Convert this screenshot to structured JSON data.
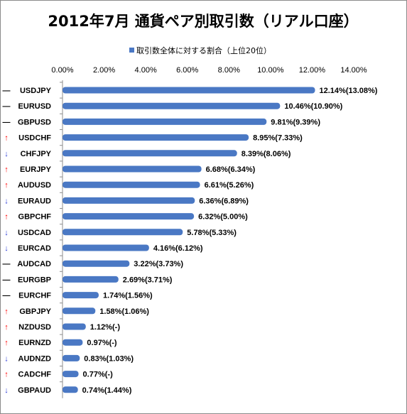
{
  "chart_data": {
    "type": "bar",
    "orientation": "horizontal",
    "title": "2012年7月 通貨ペア別取引数（リアル口座）",
    "legend": "取引数全体に対する割合（上位20位）",
    "legend_position": "top",
    "xlim": [
      0,
      14
    ],
    "x_ticks": [
      "0.00%",
      "2.00%",
      "4.00%",
      "6.00%",
      "8.00%",
      "10.00%",
      "12.00%",
      "14.00%"
    ],
    "grid": false,
    "bar_color": "#4a78c4",
    "up_color": "#ff0000",
    "down_color": "#2b3bd6",
    "categories": [
      "USDJPY",
      "EURUSD",
      "GBPUSD",
      "USDCHF",
      "CHFJPY",
      "EURJPY",
      "AUDUSD",
      "EURAUD",
      "GBPCHF",
      "USDCAD",
      "EURCAD",
      "AUDCAD",
      "EURGBP",
      "EURCHF",
      "GBPJPY",
      "NZDUSD",
      "EURNZD",
      "AUDNZD",
      "CADCHF",
      "GBPAUD"
    ],
    "trend": [
      "flat",
      "flat",
      "flat",
      "up",
      "down",
      "up",
      "up",
      "down",
      "up",
      "down",
      "down",
      "flat",
      "flat",
      "flat",
      "up",
      "up",
      "up",
      "down",
      "up",
      "down"
    ],
    "trend_glyphs": {
      "up": "↑",
      "down": "↓",
      "flat": "―"
    },
    "values": [
      12.14,
      10.46,
      9.81,
      8.95,
      8.39,
      6.68,
      6.61,
      6.36,
      6.32,
      5.78,
      4.16,
      3.22,
      2.69,
      1.74,
      1.58,
      1.12,
      0.97,
      0.83,
      0.77,
      0.74
    ],
    "labels": [
      "12.14%(13.08%)",
      "10.46%(10.90%)",
      "9.81%(9.39%)",
      "8.95%(7.33%)",
      "8.39%(8.06%)",
      "6.68%(6.34%)",
      "6.61%(5.26%)",
      "6.36%(6.89%)",
      "6.32%(5.00%)",
      "5.78%(5.33%)",
      "4.16%(6.12%)",
      "3.22%(3.73%)",
      "2.69%(3.71%)",
      "1.74%(1.56%)",
      "1.58%(1.06%)",
      "1.12%(-)",
      "0.97%(-)",
      "0.83%(1.03%)",
      "0.77%(-)",
      "0.74%(1.44%)"
    ]
  }
}
